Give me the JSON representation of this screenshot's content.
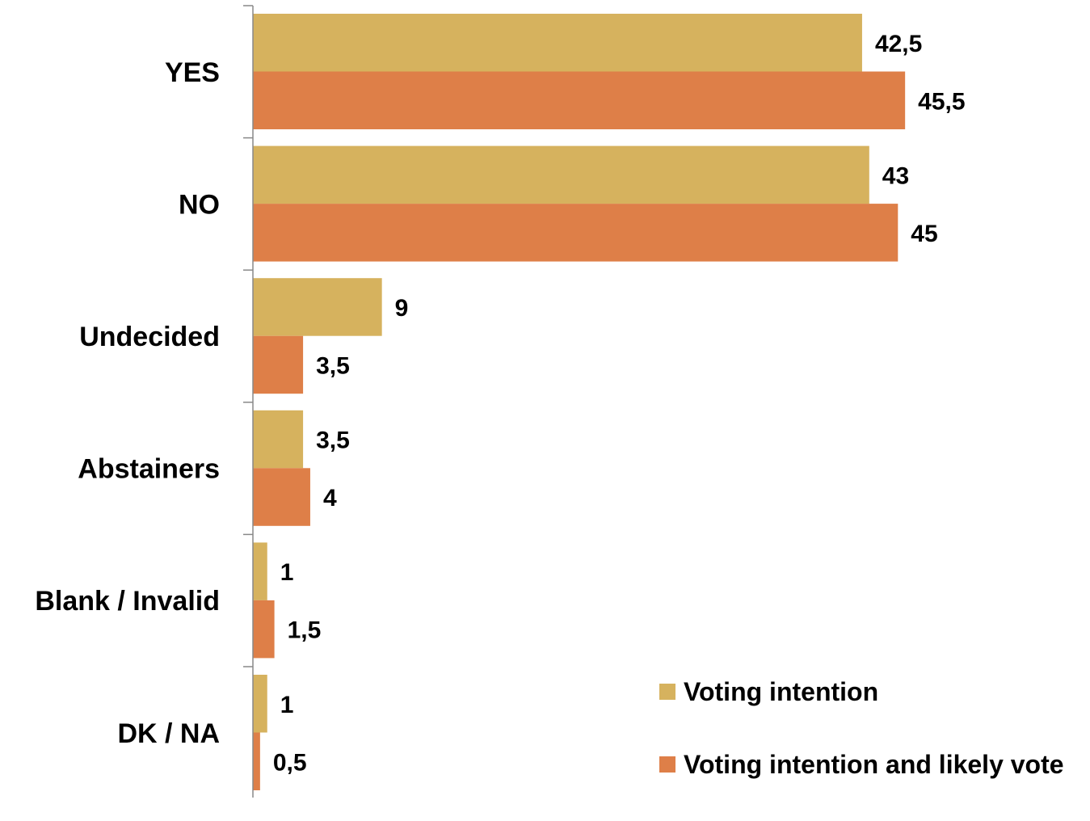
{
  "chart_data": {
    "type": "bar",
    "orientation": "horizontal",
    "categories": [
      "YES",
      "NO",
      "Undecided",
      "Abstainers",
      "Blank / Invalid",
      "DK / NA"
    ],
    "series": [
      {
        "name": "Voting intention",
        "color": "#D6B25E",
        "values": [
          42.5,
          43,
          9,
          3.5,
          1,
          1
        ],
        "labels": [
          "42,5",
          "43",
          "9",
          "3,5",
          "1",
          "1"
        ]
      },
      {
        "name": "Voting intention and likely vote",
        "color": "#DE7F48",
        "values": [
          45.5,
          45,
          3.5,
          4,
          1.5,
          0.5
        ],
        "labels": [
          "45,5",
          "45",
          "3,5",
          "4",
          "1,5",
          "0,5"
        ]
      }
    ],
    "xlim": [
      0,
      58.4
    ],
    "legend_position": "bottom-right",
    "grid": false
  }
}
